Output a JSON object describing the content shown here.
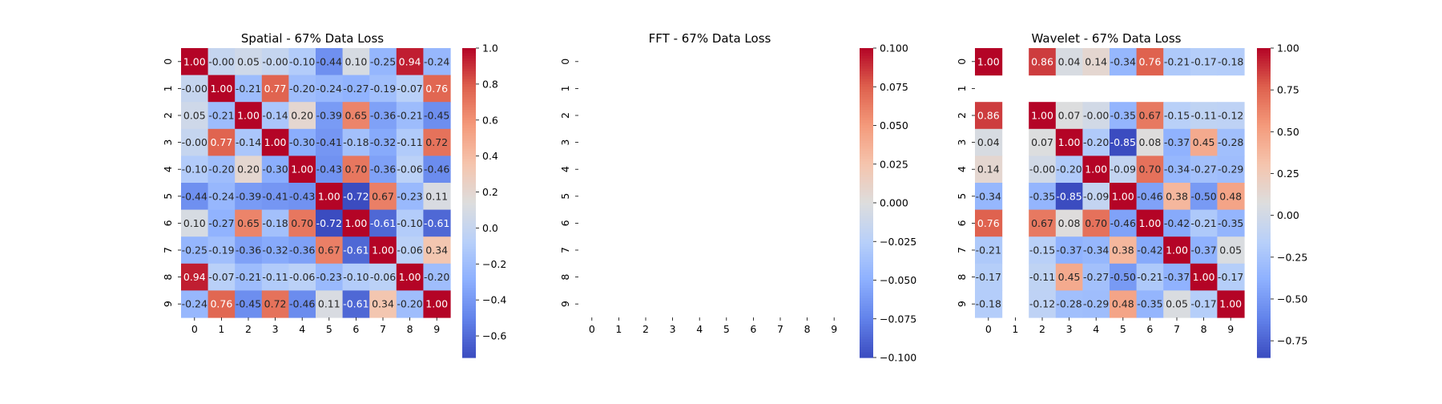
{
  "chart_data": [
    {
      "type": "heatmap",
      "title": "Spatial - 67% Data Loss",
      "x_ticks": [
        "0",
        "1",
        "2",
        "3",
        "4",
        "5",
        "6",
        "7",
        "8",
        "9"
      ],
      "y_ticks": [
        "0",
        "1",
        "2",
        "3",
        "4",
        "5",
        "6",
        "7",
        "8",
        "9"
      ],
      "colormap": "coolwarm",
      "vmin": -0.72,
      "vmax": 1.0,
      "colorbar_ticks": [
        "1.0",
        "0.8",
        "0.6",
        "0.4",
        "0.2",
        "0.0",
        "−0.2",
        "−0.4",
        "−0.6"
      ],
      "colorbar_tick_values": [
        1.0,
        0.8,
        0.6,
        0.4,
        0.2,
        0.0,
        -0.2,
        -0.4,
        -0.6
      ],
      "values": [
        [
          1.0,
          -0.0,
          0.05,
          -0.0,
          -0.1,
          -0.44,
          0.1,
          -0.25,
          0.94,
          -0.24
        ],
        [
          -0.0,
          1.0,
          -0.21,
          0.77,
          -0.2,
          -0.24,
          -0.27,
          -0.19,
          -0.07,
          0.76
        ],
        [
          0.05,
          -0.21,
          1.0,
          -0.14,
          0.2,
          -0.39,
          0.65,
          -0.36,
          -0.21,
          -0.45
        ],
        [
          -0.0,
          0.77,
          -0.14,
          1.0,
          -0.3,
          -0.41,
          -0.18,
          -0.32,
          -0.11,
          0.72
        ],
        [
          -0.1,
          -0.2,
          0.2,
          -0.3,
          1.0,
          -0.43,
          0.7,
          -0.36,
          -0.06,
          -0.46
        ],
        [
          -0.44,
          -0.24,
          -0.39,
          -0.41,
          -0.43,
          1.0,
          -0.72,
          0.67,
          -0.23,
          0.11
        ],
        [
          0.1,
          -0.27,
          0.65,
          -0.18,
          0.7,
          -0.72,
          1.0,
          -0.61,
          -0.1,
          -0.61
        ],
        [
          -0.25,
          -0.19,
          -0.36,
          -0.32,
          -0.36,
          0.67,
          -0.61,
          1.0,
          -0.06,
          0.34
        ],
        [
          0.94,
          -0.07,
          -0.21,
          -0.11,
          -0.06,
          -0.23,
          -0.1,
          -0.06,
          1.0,
          -0.2
        ],
        [
          -0.24,
          0.76,
          -0.45,
          0.72,
          -0.46,
          0.11,
          -0.61,
          0.34,
          -0.2,
          1.0
        ]
      ]
    },
    {
      "type": "heatmap",
      "title": "FFT - 67% Data Loss",
      "x_ticks": [
        "0",
        "1",
        "2",
        "3",
        "4",
        "5",
        "6",
        "7",
        "8",
        "9"
      ],
      "y_ticks": [
        "0",
        "1",
        "2",
        "3",
        "4",
        "5",
        "6",
        "7",
        "8",
        "9"
      ],
      "colormap": "coolwarm",
      "vmin": -0.1,
      "vmax": 0.1,
      "colorbar_ticks": [
        "0.100",
        "0.075",
        "0.050",
        "0.025",
        "0.000",
        "−0.025",
        "−0.050",
        "−0.075",
        "−0.100"
      ],
      "colorbar_tick_values": [
        0.1,
        0.075,
        0.05,
        0.025,
        0.0,
        -0.025,
        -0.05,
        -0.075,
        -0.1
      ],
      "values": [
        [
          null,
          null,
          null,
          null,
          null,
          null,
          null,
          null,
          null,
          null
        ],
        [
          null,
          null,
          null,
          null,
          null,
          null,
          null,
          null,
          null,
          null
        ],
        [
          null,
          null,
          null,
          null,
          null,
          null,
          null,
          null,
          null,
          null
        ],
        [
          null,
          null,
          null,
          null,
          null,
          null,
          null,
          null,
          null,
          null
        ],
        [
          null,
          null,
          null,
          null,
          null,
          null,
          null,
          null,
          null,
          null
        ],
        [
          null,
          null,
          null,
          null,
          null,
          null,
          null,
          null,
          null,
          null
        ],
        [
          null,
          null,
          null,
          null,
          null,
          null,
          null,
          null,
          null,
          null
        ],
        [
          null,
          null,
          null,
          null,
          null,
          null,
          null,
          null,
          null,
          null
        ],
        [
          null,
          null,
          null,
          null,
          null,
          null,
          null,
          null,
          null,
          null
        ],
        [
          null,
          null,
          null,
          null,
          null,
          null,
          null,
          null,
          null,
          null
        ]
      ]
    },
    {
      "type": "heatmap",
      "title": "Wavelet - 67% Data Loss",
      "x_ticks": [
        "0",
        "1",
        "2",
        "3",
        "4",
        "5",
        "6",
        "7",
        "8",
        "9"
      ],
      "y_ticks": [
        "0",
        "1",
        "2",
        "3",
        "4",
        "5",
        "6",
        "7",
        "8",
        "9"
      ],
      "colormap": "coolwarm",
      "vmin": -0.85,
      "vmax": 1.0,
      "colorbar_ticks": [
        "1.00",
        "0.75",
        "0.50",
        "0.25",
        "0.00",
        "−0.25",
        "−0.50",
        "−0.75"
      ],
      "colorbar_tick_values": [
        1.0,
        0.75,
        0.5,
        0.25,
        0.0,
        -0.25,
        -0.5,
        -0.75
      ],
      "values": [
        [
          1.0,
          null,
          0.86,
          0.04,
          0.14,
          -0.34,
          0.76,
          -0.21,
          -0.17,
          -0.18
        ],
        [
          null,
          null,
          null,
          null,
          null,
          null,
          null,
          null,
          null,
          null
        ],
        [
          0.86,
          null,
          1.0,
          0.07,
          -0.0,
          -0.35,
          0.67,
          -0.15,
          -0.11,
          -0.12
        ],
        [
          0.04,
          null,
          0.07,
          1.0,
          -0.2,
          -0.85,
          0.08,
          -0.37,
          0.45,
          -0.28
        ],
        [
          0.14,
          null,
          -0.0,
          -0.2,
          1.0,
          -0.09,
          0.7,
          -0.34,
          -0.27,
          -0.29
        ],
        [
          -0.34,
          null,
          -0.35,
          -0.85,
          -0.09,
          1.0,
          -0.46,
          0.38,
          -0.5,
          0.48
        ],
        [
          0.76,
          null,
          0.67,
          0.08,
          0.7,
          -0.46,
          1.0,
          -0.42,
          -0.21,
          -0.35
        ],
        [
          -0.21,
          null,
          -0.15,
          -0.37,
          -0.34,
          0.38,
          -0.42,
          1.0,
          -0.37,
          0.05
        ],
        [
          -0.17,
          null,
          -0.11,
          0.45,
          -0.27,
          -0.5,
          -0.21,
          -0.37,
          1.0,
          -0.17
        ],
        [
          -0.18,
          null,
          -0.12,
          -0.28,
          -0.29,
          0.48,
          -0.35,
          0.05,
          -0.17,
          1.0
        ]
      ]
    }
  ]
}
